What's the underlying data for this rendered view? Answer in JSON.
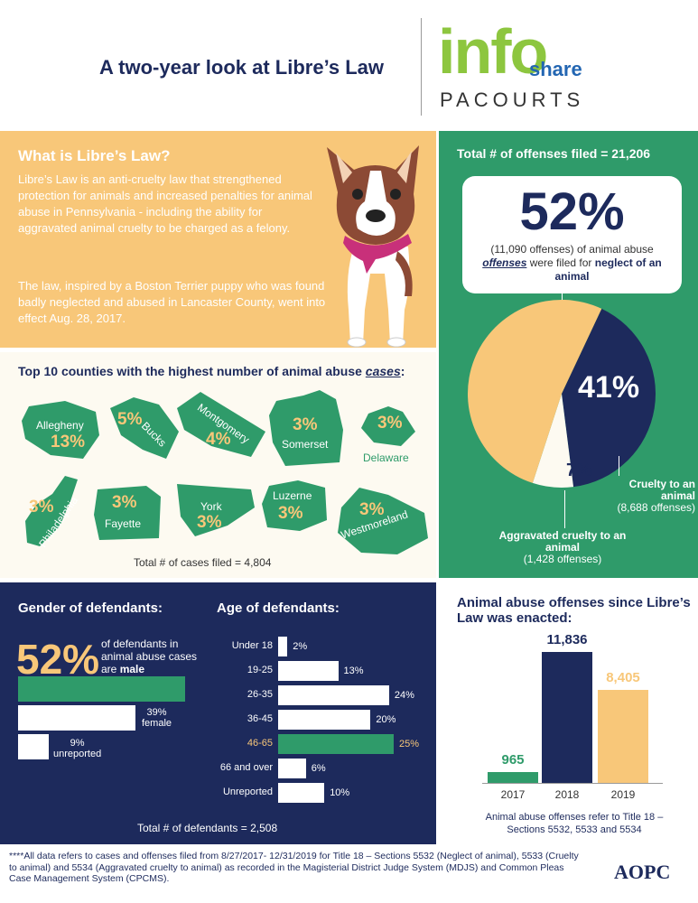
{
  "header": {
    "title": "A two-year look at Libre’s Law",
    "logo_info": "info",
    "logo_share": "share",
    "logo_pacourts": "PACOURTS"
  },
  "what": {
    "title": "What is Libre’s Law?",
    "p1": "Libre’s Law is an anti-cruelty law that strengthened protection for animals and increased penalties for animal abuse in Pennsylvania - including the ability for aggravated animal cruelty to be charged as a felony.",
    "p2": "The law, inspired by a Boston Terrier puppy who was found badly neglected and abused in Lancaster County, went into effect Aug. 28, 2017."
  },
  "offenses": {
    "total": "Total # of offenses filed = 21,206",
    "headline_pct": "52%",
    "desc_1": "(11,090 offenses) of animal abuse ",
    "desc_em": "offenses",
    "desc_2": " were filed for ",
    "desc_bold": "neglect of an animal",
    "pct_cruelty": "41%",
    "pct_aggravated": "7%",
    "cruelty_label": "Cruelty to an animal",
    "cruelty_count": "(8,688 offenses)",
    "aggravated_label": "Aggravated cruelty to an animal",
    "aggravated_count": "(1,428 offenses)",
    "slices": [
      {
        "label": "Neglect of an animal",
        "value": 52,
        "color": "#f8c779"
      },
      {
        "label": "Cruelty to an animal",
        "value": 41,
        "color": "#1d2a5c"
      },
      {
        "label": "Aggravated cruelty to an animal",
        "value": 7,
        "color": "#fdfaf1"
      }
    ]
  },
  "counties": {
    "title_1": "Top 10 counties with the highest number of animal abuse ",
    "title_em": "cases",
    "title_2": ":",
    "total": "Total # of cases filed = 4,804",
    "items": [
      {
        "name": "Allegheny",
        "pct": "13%"
      },
      {
        "name": "Bucks",
        "pct": "5%"
      },
      {
        "name": "Montgomery",
        "pct": "4%"
      },
      {
        "name": "Somerset",
        "pct": "3%"
      },
      {
        "name": "Delaware",
        "pct": "3%"
      },
      {
        "name": "Philadelphia",
        "pct": "3%"
      },
      {
        "name": "Fayette",
        "pct": "3%"
      },
      {
        "name": "York",
        "pct": "3%"
      },
      {
        "name": "Luzerne",
        "pct": "3%"
      },
      {
        "name": "Westmoreland",
        "pct": "3%"
      }
    ]
  },
  "gender": {
    "title": "Gender of defendants:",
    "pct_male": "52%",
    "desc": "of defendants in animal abuse cases are ",
    "desc_bold": "male",
    "female": "39%",
    "female_label": "female",
    "unreported": "9%",
    "unreported_label": "unreported",
    "values": {
      "male": 52,
      "female": 39,
      "unreported": 9
    }
  },
  "age": {
    "title": "Age of defendants:",
    "items": [
      {
        "label": "Under 18",
        "value": 2,
        "text": "2%"
      },
      {
        "label": "19-25",
        "value": 13,
        "text": "13%"
      },
      {
        "label": "26-35",
        "value": 24,
        "text": "24%"
      },
      {
        "label": "36-45",
        "value": 20,
        "text": "20%"
      },
      {
        "label": "46-65",
        "value": 25,
        "text": "25%"
      },
      {
        "label": "66 and over",
        "value": 6,
        "text": "6%"
      },
      {
        "label": "Unreported",
        "value": 10,
        "text": "10%"
      }
    ],
    "highlight_color": "#f8c779"
  },
  "demo_total": "Total # of defendants = 2,508",
  "since": {
    "title": "Animal abuse offenses since Libre’s Law was enacted:",
    "note": "Animal abuse offenses refer to Title 18 – Sections 5532, 5533 and 5534",
    "chart_data": {
      "type": "bar",
      "categories": [
        "2017",
        "2018",
        "2019"
      ],
      "values": [
        965,
        11836,
        8405
      ],
      "labels": [
        "965",
        "11,836",
        "8,405"
      ],
      "colors": [
        "#2f9b6a",
        "#1d2a5c",
        "#f8c779"
      ]
    }
  },
  "footer": {
    "text": "****All data refers to cases and offenses filed from 8/27/2017- 12/31/2019 for Title 18 – Sections 5532 (Neglect of animal), 5533 (Cruelty to animal) and 5534 (Aggravated cruelty to animal) as recorded in the Magisterial District Judge System (MDJS) and Common Pleas Case Management System (CPCMS).",
    "logo": "AOPC"
  },
  "colors": {
    "navy": "#1d2a5c",
    "green": "#2f9b6a",
    "orange": "#f8c779",
    "cream": "#fdfaf1",
    "lime": "#8dc63f",
    "blue": "#2366b2"
  }
}
